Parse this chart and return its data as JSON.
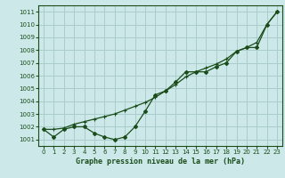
{
  "title": "Graphe pression niveau de la mer (hPa)",
  "bg_color": "#cce8e8",
  "grid_color": "#aacccc",
  "line_color": "#1a4d1a",
  "x_values": [
    0,
    1,
    2,
    3,
    4,
    5,
    6,
    7,
    8,
    9,
    10,
    11,
    12,
    13,
    14,
    15,
    16,
    17,
    18,
    19,
    20,
    21,
    22,
    23
  ],
  "y_measured": [
    1001.8,
    1001.2,
    1001.8,
    1002.0,
    1002.0,
    1001.5,
    1001.2,
    1001.0,
    1001.2,
    1002.0,
    1003.2,
    1004.5,
    1004.8,
    1005.5,
    1006.3,
    1006.3,
    1006.3,
    1006.7,
    1007.0,
    1007.9,
    1008.2,
    1008.2,
    1010.0,
    1011.0
  ],
  "y_trend": [
    1001.8,
    1001.8,
    1001.9,
    1002.2,
    1002.4,
    1002.6,
    1002.8,
    1003.0,
    1003.3,
    1003.6,
    1003.9,
    1004.3,
    1004.8,
    1005.3,
    1005.9,
    1006.3,
    1006.6,
    1006.9,
    1007.3,
    1007.9,
    1008.2,
    1008.6,
    1010.0,
    1011.0
  ],
  "ylim": [
    1000.5,
    1011.5
  ],
  "yticks": [
    1001,
    1002,
    1003,
    1004,
    1005,
    1006,
    1007,
    1008,
    1009,
    1010,
    1011
  ],
  "xlim": [
    -0.5,
    23.5
  ],
  "xticks": [
    0,
    1,
    2,
    3,
    4,
    5,
    6,
    7,
    8,
    9,
    10,
    11,
    12,
    13,
    14,
    15,
    16,
    17,
    18,
    19,
    20,
    21,
    22,
    23
  ]
}
